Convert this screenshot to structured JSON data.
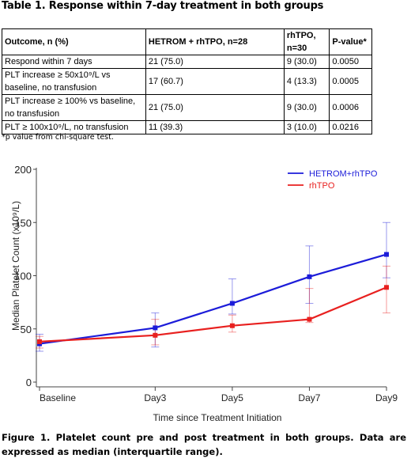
{
  "table": {
    "title": "Table 1. Response within 7-day treatment in both groups",
    "headers": [
      "Outcome, n (%)",
      "HETROM + rhTPO, n=28",
      "rhTPO, n=30",
      "P-value*"
    ],
    "rows": [
      {
        "outcome": "Respond within 7 days",
        "hetrom": "21 (75.0)",
        "rhtpo": "9 (30.0)",
        "p": "0.0050"
      },
      {
        "outcome": "PLT increase ≥ 50x10⁹/L vs baseline, no transfusion",
        "hetrom": "17 (60.7)",
        "rhtpo": "4 (13.3)",
        "p": "0.0005"
      },
      {
        "outcome": "PLT increase ≥ 100% vs baseline, no transfusion",
        "hetrom": "21 (75.0)",
        "rhtpo": "9 (30.0)",
        "p": "0.0006"
      },
      {
        "outcome": "PLT ≥ 100x10⁹/L, no transfusion",
        "hetrom": "11 (39.3)",
        "rhtpo": "3 (10.0)",
        "p": "0.0216"
      }
    ],
    "footnote": "*p value from chi-square test."
  },
  "chart_data": {
    "type": "line",
    "categories": [
      "Baseline",
      "Day3",
      "Day5",
      "Day7",
      "Day9"
    ],
    "x_positions": [
      0,
      3,
      5,
      7,
      9
    ],
    "xlabel": "Time since Treatment Initiation",
    "ylabel": "Median Platelet Count (x10⁹/L)",
    "ylim": [
      0,
      200
    ],
    "yticks": [
      0,
      50,
      100,
      150,
      200
    ],
    "legend_position": "top-right",
    "series": [
      {
        "name": "HETROM+rhTPO",
        "color": "#1c1cd9",
        "values": [
          36,
          51,
          74,
          99,
          120
        ],
        "lower": [
          29,
          33,
          64,
          74,
          98
        ],
        "upper": [
          45,
          65,
          97,
          128,
          150
        ]
      },
      {
        "name": "rhTPO",
        "color": "#e8201f",
        "values": [
          38,
          44,
          53,
          59,
          89
        ],
        "lower": [
          32,
          35,
          47,
          56,
          65
        ],
        "upper": [
          43,
          59,
          63,
          88,
          109
        ]
      }
    ]
  },
  "figure_caption": "Figure 1. Platelet count pre and post treatment in both groups. Data are expressed as median (interquartile range)."
}
